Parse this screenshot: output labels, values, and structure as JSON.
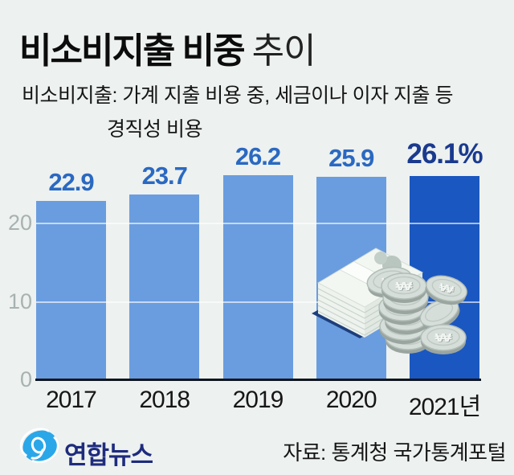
{
  "title": {
    "main": "비소비지출 비중",
    "sub": "추이"
  },
  "subtitle": {
    "line1": "비소비지출: 가계 지출 비용 중, 세금이나 이자 지출 등",
    "line2": "경직성 비용"
  },
  "chart_data": {
    "type": "bar",
    "title": "비소비지출 비중 추이",
    "categories": [
      "2017",
      "2018",
      "2019",
      "2020",
      "2021년"
    ],
    "values": [
      22.9,
      23.7,
      26.2,
      25.9,
      26.1
    ],
    "value_labels": [
      "22.9",
      "23.7",
      "26.2",
      "25.9",
      "26.1%"
    ],
    "unit": "%",
    "ylim": [
      0,
      30
    ],
    "yticks": [
      0,
      10,
      20
    ],
    "grid": "horizontal-white-lines",
    "legend": "none",
    "highlight_index": 4,
    "bar_color": "#6a9ddf",
    "highlight_bar_color": "#1b57c0",
    "value_label_color": "#2a69c2",
    "highlight_value_label_color": "#1a3a8f"
  },
  "footer": {
    "logo_text": "연합뉴스",
    "source": "자료: 통계청 국가통계포털"
  },
  "icons": {
    "logo_mark": "yonhap-swirl-icon",
    "money": "banknotes-and-coins-illustration",
    "won_symbol": "₩"
  },
  "colors": {
    "background": "#edf1ef",
    "axis_line": "#10161f",
    "ytick_label": "#a7b2b1",
    "xtick_label": "#161616",
    "logo_navy": "#1e2b7d",
    "logo_blue": "#2aa7e9",
    "bill_face": "#f3f7f2",
    "bill_shadow": "#1d3e7c",
    "coin_face": "#d6deda"
  }
}
